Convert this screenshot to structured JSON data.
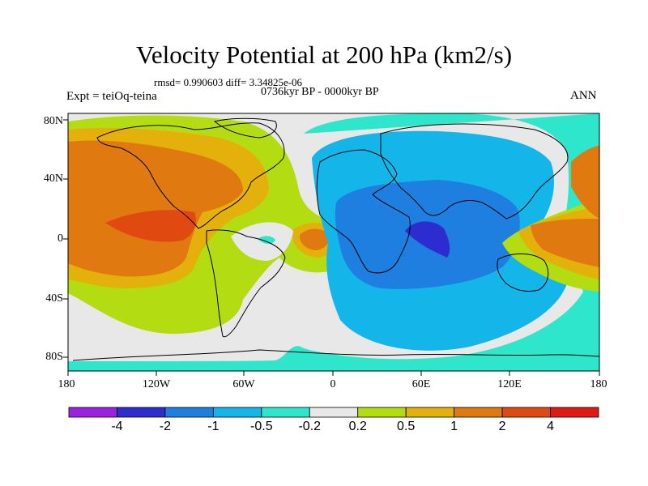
{
  "title": "Velocity Potential at 200 hPa (km2/s)",
  "stats": "rmsd= 0.990603 diff= 3.34825e-06",
  "period": "0736kyr BP - 0000kyr BP",
  "experiment": "Expt = teiOq-teina",
  "season": "ANN",
  "lat_labels": [
    "80N",
    "40N",
    "0",
    "40S",
    "80S"
  ],
  "lon_labels": [
    "180",
    "120W",
    "60W",
    "0",
    "60E",
    "120E",
    "180"
  ],
  "colorbar": {
    "labels": [
      "-4",
      "-2",
      "-1",
      "-0.5",
      "-0.2",
      "0.2",
      "0.5",
      "1",
      "2",
      "4"
    ],
    "colors": [
      "#9b20e0",
      "#2c2ccf",
      "#1f7fe0",
      "#14b6ea",
      "#2ee6cc",
      "#e8e8e8",
      "#b3dc12",
      "#e3b00c",
      "#e07a10",
      "#e04a10",
      "#e01a10"
    ]
  }
}
